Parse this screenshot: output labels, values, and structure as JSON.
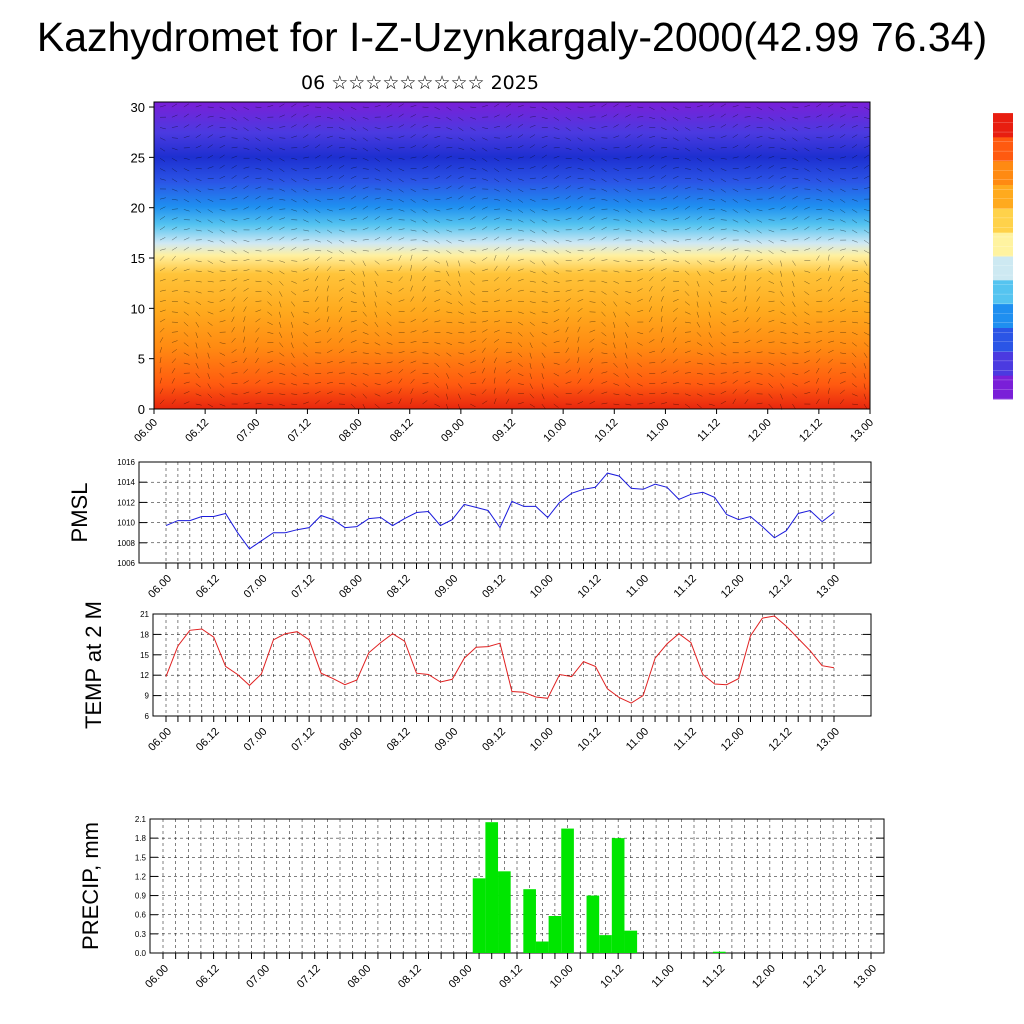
{
  "header": {
    "title": "Kazhydromet for I-Z-Uzynkargaly-2000(42.99 76.34)",
    "subtitle": "06 ☆☆☆☆☆☆☆☆☆ 2025"
  },
  "x_tick_labels": [
    "06.00",
    "06.12",
    "07.00",
    "07.12",
    "08.00",
    "08.12",
    "09.00",
    "09.12",
    "10.00",
    "10.12",
    "11.00",
    "11.12",
    "12.00",
    "12.12",
    "13.00"
  ],
  "chart_data": [
    {
      "type": "heatmap",
      "title": "",
      "xlabel": "",
      "ylabel": "",
      "x_ticks": [
        "06.00",
        "06.12",
        "07.00",
        "07.12",
        "08.00",
        "08.12",
        "09.00",
        "09.12",
        "10.00",
        "10.12",
        "11.00",
        "11.12",
        "12.00",
        "12.12",
        "13.00"
      ],
      "y_ticks": [
        0,
        5,
        10,
        15,
        20,
        25,
        30
      ],
      "ylim": [
        0,
        30.5
      ],
      "colorbar": [
        "#7a1fd8",
        "#4b3ae0",
        "#2b55e6",
        "#1f8ff0",
        "#55c4f0",
        "#cde9f2",
        "#fff3a0",
        "#ffd24a",
        "#ffaa1e",
        "#ff8a12",
        "#ff5a10",
        "#e81e10"
      ]
    },
    {
      "type": "line",
      "ylabel": "PMSL",
      "ylim": [
        1006,
        1016
      ],
      "y_ticks": [
        1006,
        1008,
        1010,
        1012,
        1014,
        1016
      ],
      "color": "#1a1adc",
      "values": [
        1009.7,
        1010.2,
        1010.2,
        1010.6,
        1010.6,
        1010.9,
        1009.0,
        1007.4,
        1008.2,
        1009.0,
        1009.0,
        1009.3,
        1009.5,
        1010.7,
        1010.3,
        1009.5,
        1009.6,
        1010.4,
        1010.5,
        1009.7,
        1010.4,
        1011.0,
        1011.1,
        1009.7,
        1010.3,
        1011.8,
        1011.5,
        1011.2,
        1009.5,
        1012.1,
        1011.6,
        1011.6,
        1010.5,
        1012.0,
        1012.9,
        1013.3,
        1013.5,
        1014.9,
        1014.6,
        1013.4,
        1013.3,
        1013.8,
        1013.5,
        1012.3,
        1012.8,
        1013.0,
        1012.5,
        1010.8,
        1010.3,
        1010.6,
        1009.6,
        1008.5,
        1009.2,
        1010.9,
        1011.2,
        1010.1,
        1011.0
      ]
    },
    {
      "type": "line",
      "ylabel": "TEMP at 2 M",
      "ylim": [
        6,
        21
      ],
      "y_ticks": [
        6,
        9,
        12,
        15,
        18,
        21
      ],
      "color": "#e02020",
      "values": [
        11.8,
        16.3,
        18.6,
        18.8,
        17.6,
        13.3,
        12.1,
        10.5,
        12.2,
        17.2,
        18.1,
        18.4,
        17.2,
        12.3,
        11.5,
        10.6,
        11.3,
        15.3,
        16.8,
        18.1,
        17.0,
        12.3,
        12.1,
        11.0,
        11.4,
        14.5,
        16.1,
        16.2,
        16.7,
        9.6,
        9.5,
        8.8,
        8.6,
        12.1,
        11.8,
        14.0,
        13.3,
        10.0,
        8.7,
        7.9,
        9.0,
        14.5,
        16.6,
        18.1,
        16.8,
        12.1,
        10.7,
        10.6,
        11.5,
        17.8,
        20.4,
        20.7,
        19.2,
        17.4,
        15.6,
        13.4,
        13.1
      ]
    },
    {
      "type": "bar",
      "ylabel": "PRECIP, mm",
      "ylim": [
        0,
        2.1
      ],
      "y_ticks": [
        0.0,
        0.3,
        0.6,
        0.9,
        1.2,
        1.5,
        1.8,
        2.1
      ],
      "color": "#00e600",
      "values": [
        0,
        0,
        0,
        0,
        0,
        0,
        0,
        0,
        0,
        0,
        0,
        0,
        0,
        0,
        0,
        0,
        0,
        0,
        0,
        0,
        0,
        0,
        0,
        0,
        0,
        1.17,
        2.05,
        1.28,
        0,
        1.0,
        0.18,
        0.58,
        1.95,
        0,
        0.9,
        0.28,
        1.8,
        0.35,
        0,
        0,
        0,
        0,
        0,
        0,
        0.02,
        0,
        0,
        0,
        0,
        0,
        0,
        0,
        0,
        0,
        0,
        0,
        0
      ]
    }
  ]
}
